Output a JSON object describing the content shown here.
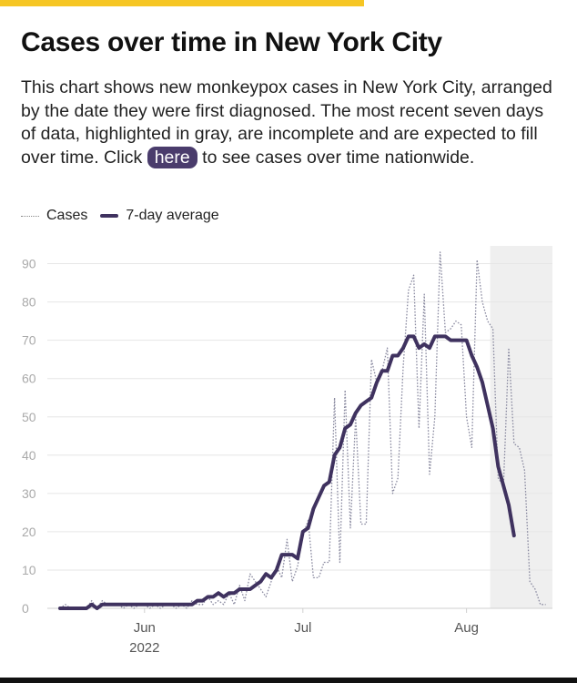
{
  "header": {
    "title": "Cases over time in New York City",
    "desc_before": "This chart shows new monkeypox cases in New York City, arranged by the date they were first diagnosed. The most recent seven days of data, highlighted in gray, are incomplete and are expected to fill over time. Click ",
    "link_label": "here",
    "desc_after": " to see cases over time nationwide."
  },
  "legend": {
    "cases_label": "Cases",
    "avg_label": "7-day average"
  },
  "colors": {
    "accent": "#f6c624",
    "avg_line": "#3f325f",
    "cases_line": "#8a8aa0",
    "pill": "#4a3c6c",
    "incomplete_band": "#efefef"
  },
  "chart_data": {
    "type": "line",
    "title": "Cases over time in New York City",
    "xlabel": "",
    "ylabel": "",
    "ylim": [
      0,
      90
    ],
    "yticks": [
      0,
      10,
      20,
      30,
      40,
      50,
      60,
      70,
      80,
      90
    ],
    "x_start": "2022-05-16",
    "x_tick_labels": [
      {
        "day": 16,
        "label": "Jun",
        "sublabel": "2022"
      },
      {
        "day": 46,
        "label": "Jul",
        "sublabel": ""
      },
      {
        "day": 77,
        "label": "Aug",
        "sublabel": ""
      }
    ],
    "incomplete_from_day": 82,
    "series": [
      {
        "name": "Cases",
        "style": "dotted",
        "points": [
          [
            0,
            0
          ],
          [
            1,
            1
          ],
          [
            2,
            0
          ],
          [
            3,
            0
          ],
          [
            4,
            0
          ],
          [
            5,
            0
          ],
          [
            6,
            2
          ],
          [
            7,
            0
          ],
          [
            8,
            2
          ],
          [
            9,
            1
          ],
          [
            10,
            1
          ],
          [
            11,
            1
          ],
          [
            12,
            0
          ],
          [
            13,
            1
          ],
          [
            14,
            0
          ],
          [
            15,
            1
          ],
          [
            16,
            1
          ],
          [
            17,
            0
          ],
          [
            18,
            1
          ],
          [
            19,
            0
          ],
          [
            20,
            1
          ],
          [
            21,
            1
          ],
          [
            22,
            0
          ],
          [
            23,
            1
          ],
          [
            24,
            0
          ],
          [
            25,
            2
          ],
          [
            26,
            1
          ],
          [
            27,
            1
          ],
          [
            28,
            3
          ],
          [
            29,
            1
          ],
          [
            30,
            2
          ],
          [
            31,
            1
          ],
          [
            32,
            4
          ],
          [
            33,
            1
          ],
          [
            34,
            6
          ],
          [
            35,
            2
          ],
          [
            36,
            9
          ],
          [
            37,
            7
          ],
          [
            38,
            5
          ],
          [
            39,
            3
          ],
          [
            40,
            7
          ],
          [
            41,
            11
          ],
          [
            42,
            8
          ],
          [
            43,
            18
          ],
          [
            44,
            7
          ],
          [
            45,
            11
          ],
          [
            46,
            19
          ],
          [
            47,
            23
          ],
          [
            48,
            8
          ],
          [
            49,
            8
          ],
          [
            50,
            12
          ],
          [
            51,
            12
          ],
          [
            52,
            55
          ],
          [
            53,
            12
          ],
          [
            54,
            57
          ],
          [
            55,
            21
          ],
          [
            56,
            50
          ],
          [
            57,
            22
          ],
          [
            58,
            22
          ],
          [
            59,
            65
          ],
          [
            60,
            59
          ],
          [
            61,
            62
          ],
          [
            62,
            68
          ],
          [
            63,
            30
          ],
          [
            64,
            34
          ],
          [
            65,
            63
          ],
          [
            66,
            83
          ],
          [
            67,
            87
          ],
          [
            68,
            47
          ],
          [
            69,
            82
          ],
          [
            70,
            35
          ],
          [
            71,
            50
          ],
          [
            72,
            93
          ],
          [
            73,
            72
          ],
          [
            74,
            73
          ],
          [
            75,
            75
          ],
          [
            76,
            74
          ],
          [
            77,
            50
          ],
          [
            78,
            42
          ],
          [
            79,
            91
          ],
          [
            80,
            80
          ],
          [
            81,
            75
          ],
          [
            82,
            73
          ],
          [
            83,
            34
          ],
          [
            84,
            32
          ],
          [
            85,
            68
          ],
          [
            86,
            43
          ],
          [
            87,
            42
          ],
          [
            88,
            36
          ],
          [
            89,
            7
          ],
          [
            90,
            5
          ],
          [
            91,
            1
          ],
          [
            92,
            1
          ]
        ]
      },
      {
        "name": "7-day average",
        "style": "solid",
        "points": [
          [
            0,
            0
          ],
          [
            1,
            0
          ],
          [
            2,
            0
          ],
          [
            3,
            0
          ],
          [
            4,
            0
          ],
          [
            5,
            0
          ],
          [
            6,
            1
          ],
          [
            7,
            0
          ],
          [
            8,
            1
          ],
          [
            9,
            1
          ],
          [
            10,
            1
          ],
          [
            11,
            1
          ],
          [
            12,
            1
          ],
          [
            13,
            1
          ],
          [
            14,
            1
          ],
          [
            15,
            1
          ],
          [
            16,
            1
          ],
          [
            17,
            1
          ],
          [
            18,
            1
          ],
          [
            19,
            1
          ],
          [
            20,
            1
          ],
          [
            21,
            1
          ],
          [
            22,
            1
          ],
          [
            23,
            1
          ],
          [
            24,
            1
          ],
          [
            25,
            1
          ],
          [
            26,
            2
          ],
          [
            27,
            2
          ],
          [
            28,
            3
          ],
          [
            29,
            3
          ],
          [
            30,
            4
          ],
          [
            31,
            3
          ],
          [
            32,
            4
          ],
          [
            33,
            4
          ],
          [
            34,
            5
          ],
          [
            35,
            5
          ],
          [
            36,
            5
          ],
          [
            37,
            6
          ],
          [
            38,
            7
          ],
          [
            39,
            9
          ],
          [
            40,
            8
          ],
          [
            41,
            10
          ],
          [
            42,
            14
          ],
          [
            43,
            14
          ],
          [
            44,
            14
          ],
          [
            45,
            13
          ],
          [
            46,
            20
          ],
          [
            47,
            21
          ],
          [
            48,
            26
          ],
          [
            49,
            29
          ],
          [
            50,
            32
          ],
          [
            51,
            33
          ],
          [
            52,
            40
          ],
          [
            53,
            42
          ],
          [
            54,
            47
          ],
          [
            55,
            48
          ],
          [
            56,
            51
          ],
          [
            57,
            53
          ],
          [
            58,
            54
          ],
          [
            59,
            55
          ],
          [
            60,
            59
          ],
          [
            61,
            62
          ],
          [
            62,
            62
          ],
          [
            63,
            66
          ],
          [
            64,
            66
          ],
          [
            65,
            68
          ],
          [
            66,
            71
          ],
          [
            67,
            71
          ],
          [
            68,
            68
          ],
          [
            69,
            69
          ],
          [
            70,
            68
          ],
          [
            71,
            71
          ],
          [
            72,
            71
          ],
          [
            73,
            71
          ],
          [
            74,
            70
          ],
          [
            75,
            70
          ],
          [
            76,
            70
          ],
          [
            77,
            70
          ],
          [
            78,
            66
          ],
          [
            79,
            63
          ],
          [
            80,
            59
          ],
          [
            81,
            53
          ],
          [
            82,
            47
          ],
          [
            83,
            37
          ],
          [
            84,
            32
          ],
          [
            85,
            27
          ],
          [
            86,
            19
          ]
        ]
      }
    ]
  }
}
